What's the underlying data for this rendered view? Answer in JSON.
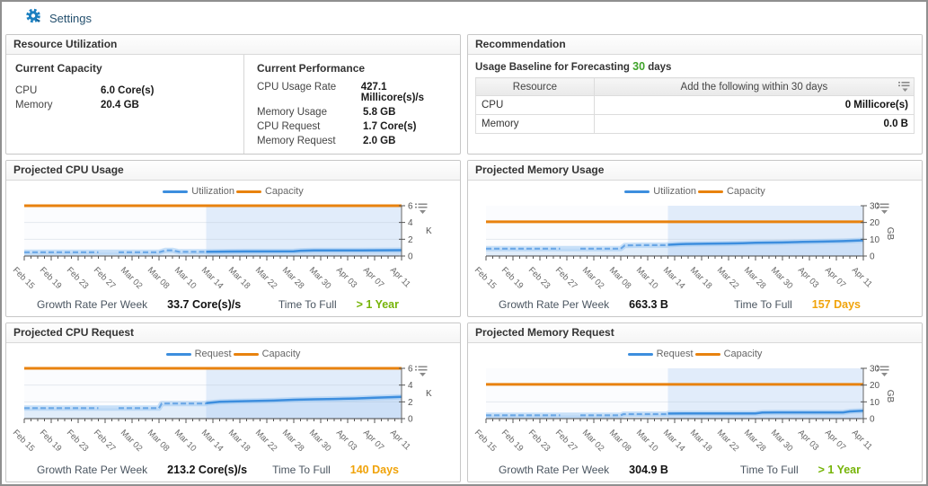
{
  "header": {
    "title": "Settings"
  },
  "colors": {
    "series_blue": "#3d8ede",
    "series_blue_light": "#6aa7e6",
    "series_orange": "#e8820e",
    "good_green": "#76b408",
    "warn_orange": "#f0a30a",
    "baseline_green": "#3fa32a",
    "settings_blue": "#1a7fc0"
  },
  "resource_utilization": {
    "title": "Resource Utilization",
    "capacity": {
      "title": "Current Capacity",
      "rows": [
        {
          "label": "CPU",
          "value": "6.0 Core(s)"
        },
        {
          "label": "Memory",
          "value": "20.4 GB"
        }
      ]
    },
    "performance": {
      "title": "Current Performance",
      "rows": [
        {
          "label": "CPU Usage Rate",
          "value": "427.1 Millicore(s)/s"
        },
        {
          "label": "Memory Usage",
          "value": "5.8 GB"
        },
        {
          "label": "CPU Request",
          "value": "1.7 Core(s)"
        },
        {
          "label": "Memory Request",
          "value": "2.0 GB"
        }
      ]
    }
  },
  "recommendation": {
    "title": "Recommendation",
    "baseline_prefix": "Usage Baseline for Forecasting",
    "baseline_days": "30",
    "baseline_suffix": "days",
    "table": {
      "columns": [
        "Resource",
        "Add the following within 30 days"
      ],
      "rows": [
        {
          "resource": "CPU",
          "value": "0 Millicore(s)"
        },
        {
          "resource": "Memory",
          "value": "0.0 B"
        }
      ]
    }
  },
  "chart_data": [
    {
      "type": "line",
      "title": "Projected CPU Usage",
      "legend": [
        {
          "name": "Utilization",
          "color": "#3d8ede"
        },
        {
          "name": "Capacity",
          "color": "#e8820e"
        }
      ],
      "x_labels": [
        "Feb 15",
        "Feb 19",
        "Feb 23",
        "Feb 27",
        "Mar 02",
        "Mar 08",
        "Mar 10",
        "Mar 14",
        "Mar 18",
        "Mar 22",
        "Mar 28",
        "Mar 30",
        "Apr 03",
        "Apr 07",
        "Apr 11"
      ],
      "x_days": 56,
      "label_every": 4,
      "y_ticks": [
        0,
        2,
        4,
        6
      ],
      "y_max": 6,
      "unit": "K",
      "unit_rotated": false,
      "capacity": 6,
      "forecast_start_day": 27,
      "history": [
        [
          [
            0,
            0.45
          ],
          [
            11,
            0.45
          ]
        ],
        [
          [
            14,
            0.45
          ],
          [
            20,
            0.45
          ],
          [
            21,
            0.68
          ],
          [
            22,
            0.68
          ],
          [
            23,
            0.5
          ],
          [
            27,
            0.5
          ]
        ]
      ],
      "forecast": [
        [
          27,
          0.5
        ],
        [
          29,
          0.53
        ],
        [
          33,
          0.55
        ],
        [
          40,
          0.57
        ],
        [
          41,
          0.63
        ],
        [
          43,
          0.66
        ],
        [
          50,
          0.66
        ],
        [
          56,
          0.7
        ]
      ],
      "footer": {
        "growth_label": "Growth Rate Per Week",
        "growth_value": "33.7 Core(s)/s",
        "ttf_label": "Time To Full",
        "ttf_value": "> 1 Year",
        "ttf_color": "#76b408"
      }
    },
    {
      "type": "line",
      "title": "Projected Memory Usage",
      "legend": [
        {
          "name": "Utilization",
          "color": "#3d8ede"
        },
        {
          "name": "Capacity",
          "color": "#e8820e"
        }
      ],
      "x_labels": [
        "Feb 15",
        "Feb 19",
        "Feb 23",
        "Feb 27",
        "Mar 02",
        "Mar 08",
        "Mar 10",
        "Mar 14",
        "Mar 18",
        "Mar 22",
        "Mar 28",
        "Mar 30",
        "Apr 03",
        "Apr 07",
        "Apr 11"
      ],
      "x_days": 56,
      "label_every": 4,
      "y_ticks": [
        0,
        10,
        20,
        30
      ],
      "y_max": 30,
      "unit": "GB",
      "unit_rotated": true,
      "capacity": 20.4,
      "forecast_start_day": 27,
      "history": [
        [
          [
            0,
            4.4
          ],
          [
            11,
            4.4
          ]
        ],
        [
          [
            14,
            4.4
          ],
          [
            20,
            4.4
          ],
          [
            20.6,
            6.3
          ],
          [
            23,
            6.5
          ],
          [
            27,
            6.5
          ]
        ]
      ],
      "forecast": [
        [
          27,
          6.7
        ],
        [
          29,
          7.1
        ],
        [
          33,
          7.4
        ],
        [
          36,
          7.5
        ],
        [
          38,
          7.6
        ],
        [
          40,
          7.9
        ],
        [
          44,
          8.1
        ],
        [
          47,
          8.4
        ],
        [
          50,
          8.6
        ],
        [
          53,
          8.9
        ],
        [
          56,
          9.4
        ]
      ],
      "footer": {
        "growth_label": "Growth Rate Per Week",
        "growth_value": "663.3 B",
        "ttf_label": "Time To Full",
        "ttf_value": "157 Days",
        "ttf_color": "#f0a30a"
      }
    },
    {
      "type": "line",
      "title": "Projected CPU Request",
      "legend": [
        {
          "name": "Request",
          "color": "#3d8ede"
        },
        {
          "name": "Capacity",
          "color": "#e8820e"
        }
      ],
      "x_labels": [
        "Feb 15",
        "Feb 19",
        "Feb 23",
        "Feb 27",
        "Mar 02",
        "Mar 08",
        "Mar 10",
        "Mar 14",
        "Mar 18",
        "Mar 22",
        "Mar 28",
        "Mar 30",
        "Apr 03",
        "Apr 07",
        "Apr 11"
      ],
      "x_days": 56,
      "label_every": 4,
      "y_ticks": [
        0,
        2,
        4,
        6
      ],
      "y_max": 6,
      "unit": "K",
      "unit_rotated": false,
      "capacity": 6,
      "forecast_start_day": 27,
      "history": [
        [
          [
            0,
            1.25
          ],
          [
            11,
            1.25
          ]
        ],
        [
          [
            14,
            1.25
          ],
          [
            20,
            1.25
          ],
          [
            20.4,
            1.8
          ],
          [
            27,
            1.8
          ]
        ]
      ],
      "forecast": [
        [
          27,
          1.85
        ],
        [
          29,
          2.0
        ],
        [
          31,
          2.05
        ],
        [
          34,
          2.1
        ],
        [
          37,
          2.15
        ],
        [
          40,
          2.25
        ],
        [
          43,
          2.3
        ],
        [
          46,
          2.35
        ],
        [
          49,
          2.4
        ],
        [
          52,
          2.5
        ],
        [
          54,
          2.55
        ],
        [
          56,
          2.6
        ]
      ],
      "footer": {
        "growth_label": "Growth Rate Per Week",
        "growth_value": "213.2 Core(s)/s",
        "ttf_label": "Time To Full",
        "ttf_value": "140 Days",
        "ttf_color": "#f0a30a"
      }
    },
    {
      "type": "line",
      "title": "Projected Memory Request",
      "legend": [
        {
          "name": "Request",
          "color": "#3d8ede"
        },
        {
          "name": "Capacity",
          "color": "#e8820e"
        }
      ],
      "x_labels": [
        "Feb 15",
        "Feb 19",
        "Feb 23",
        "Feb 27",
        "Mar 02",
        "Mar 08",
        "Mar 10",
        "Mar 14",
        "Mar 18",
        "Mar 22",
        "Mar 28",
        "Mar 30",
        "Apr 03",
        "Apr 07",
        "Apr 11"
      ],
      "x_days": 56,
      "label_every": 4,
      "y_ticks": [
        0,
        10,
        20,
        30
      ],
      "y_max": 30,
      "unit": "GB",
      "unit_rotated": true,
      "capacity": 20.4,
      "forecast_start_day": 27,
      "history": [
        [
          [
            0,
            2.0
          ],
          [
            11,
            2.0
          ]
        ],
        [
          [
            14,
            2.0
          ],
          [
            20,
            2.0
          ],
          [
            20.4,
            2.7
          ],
          [
            27,
            2.7
          ]
        ]
      ],
      "forecast": [
        [
          27,
          3.0
        ],
        [
          30,
          3.1
        ],
        [
          40,
          3.1
        ],
        [
          41,
          3.6
        ],
        [
          43,
          3.7
        ],
        [
          53,
          3.7
        ],
        [
          54,
          4.3
        ],
        [
          56,
          4.7
        ]
      ],
      "footer": {
        "growth_label": "Growth Rate Per Week",
        "growth_value": "304.9 B",
        "ttf_label": "Time To Full",
        "ttf_value": "> 1 Year",
        "ttf_color": "#76b408"
      }
    }
  ]
}
